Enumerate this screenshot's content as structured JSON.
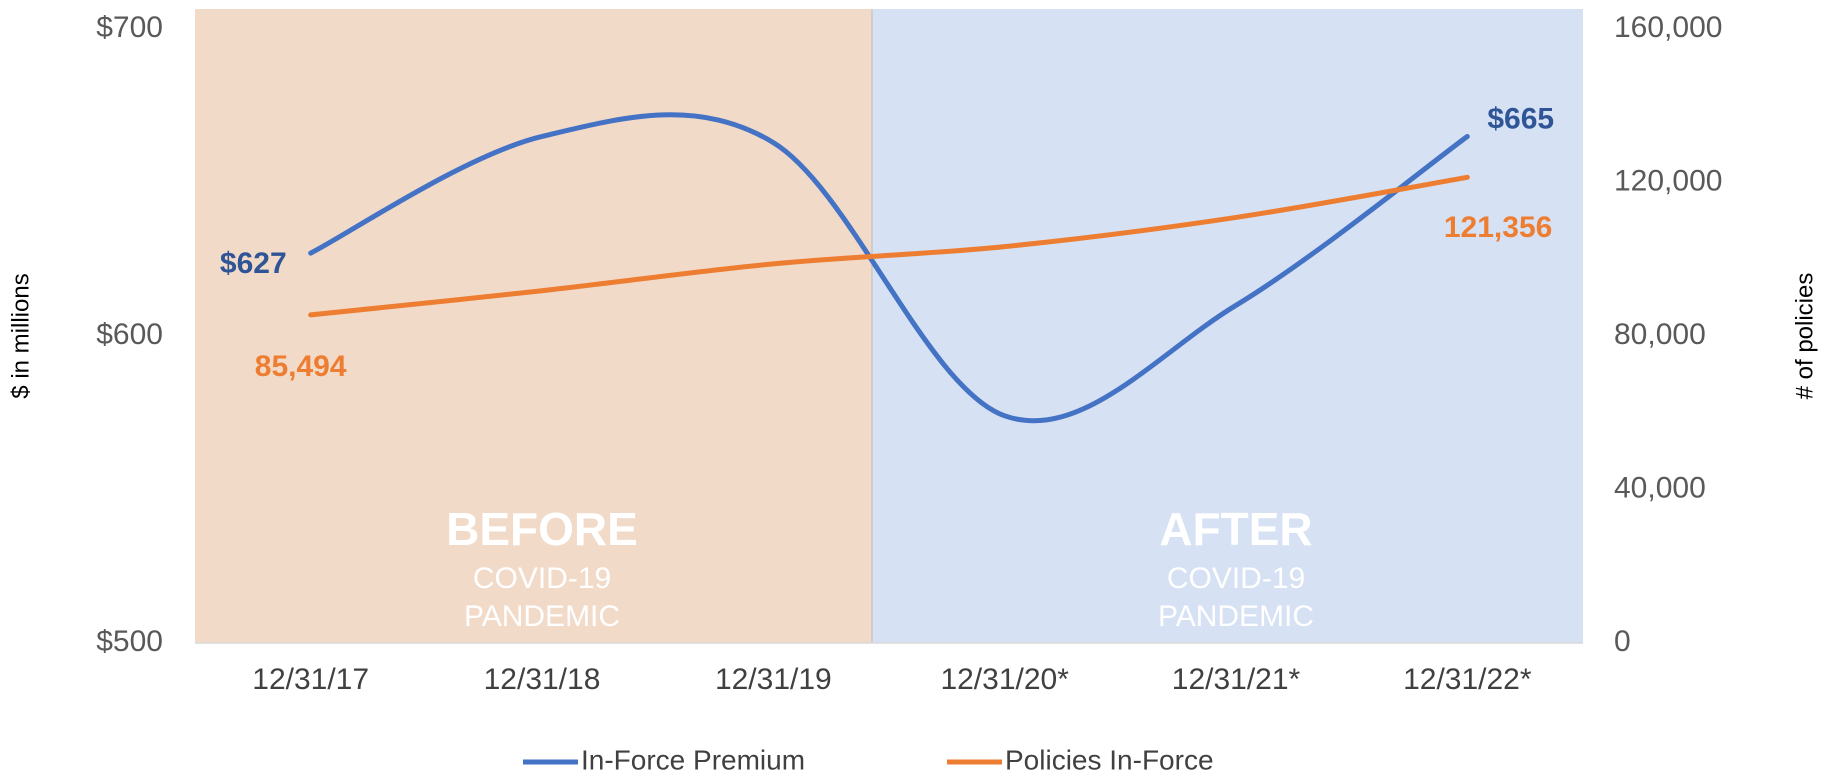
{
  "chart_data": {
    "type": "line",
    "categories": [
      "12/31/17",
      "12/31/18",
      "12/31/19",
      "12/31/20*",
      "12/31/21*",
      "12/31/22*"
    ],
    "series": [
      {
        "name": "In-Force Premium",
        "color": "#4472c4",
        "values": [
          627,
          665,
          663,
          574,
          610,
          665
        ],
        "value_labels": [
          "$627",
          null,
          null,
          null,
          null,
          "$665"
        ]
      },
      {
        "name": "Policies In-Force",
        "color": "#ed7d31",
        "axis": "y2",
        "values": [
          85494,
          91800,
          98800,
          103300,
          110900,
          121356
        ],
        "value_labels": [
          "85,494",
          null,
          null,
          null,
          null,
          "121,356"
        ]
      }
    ],
    "ylabel": "$ in millions",
    "y2label": "# of policies",
    "ylim": [
      500,
      700
    ],
    "yticks": [
      {
        "value": 500,
        "label": "$500"
      },
      {
        "value": 600,
        "label": "$600"
      },
      {
        "value": 700,
        "label": "$700"
      }
    ],
    "y2lim": [
      0,
      160000
    ],
    "y2ticks": [
      0,
      {
        "value": 40000,
        "label": "40,000"
      },
      {
        "value": 80000,
        "label": "80,000"
      },
      {
        "value": 120000,
        "label": "120,000"
      },
      {
        "value": 160000,
        "label": "160,000"
      }
    ],
    "annotations": [
      {
        "title": "BEFORE",
        "text": [
          "COVID-19",
          "PANDEMIC"
        ]
      },
      {
        "title": "AFTER",
        "text": [
          "COVID-19",
          "PANDEMIC"
        ]
      }
    ],
    "legend": "bottom"
  }
}
